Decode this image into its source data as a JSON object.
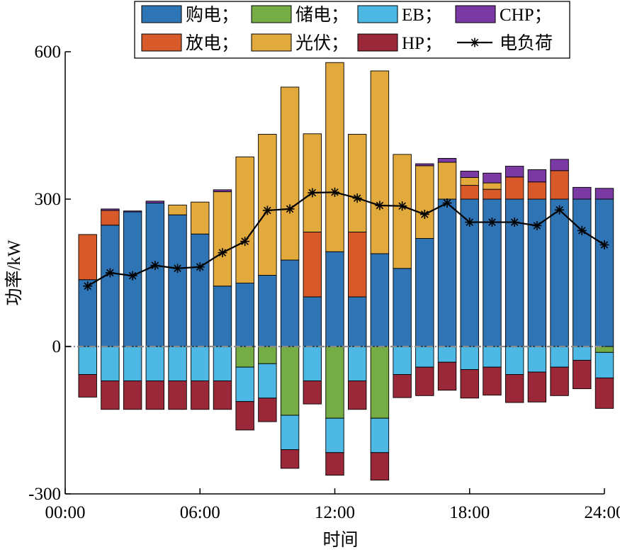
{
  "chart_data": {
    "type": "bar",
    "stacked": true,
    "xlabel": "时间",
    "ylabel": "功率/kW",
    "ylim": [
      -300,
      600
    ],
    "yticks": [
      "-300",
      "0",
      "300",
      "600"
    ],
    "xticks": [
      "00:00",
      "06:00",
      "12:00",
      "18:00",
      "24:00"
    ],
    "xlim": [
      0,
      24
    ],
    "grid": false,
    "legend_position": "top",
    "x": [
      1,
      2,
      3,
      4,
      5,
      6,
      7,
      8,
      9,
      10,
      11,
      12,
      13,
      14,
      15,
      16,
      17,
      18,
      19,
      20,
      21,
      22,
      23,
      24
    ],
    "series": [
      {
        "name": "购电",
        "color": "#2f74b5",
        "values": [
          136,
          247,
          274,
          292,
          268,
          229,
          123,
          129,
          145,
          176,
          101,
          193,
          101,
          189,
          159,
          220,
          300,
          300,
          300,
          300,
          300,
          300,
          300,
          300
        ]
      },
      {
        "name": "放电",
        "color": "#d85a2a",
        "values": [
          92,
          30,
          0,
          0,
          0,
          0,
          0,
          0,
          0,
          0,
          132,
          0,
          132,
          0,
          0,
          0,
          0,
          28,
          20,
          45,
          35,
          58,
          0,
          0
        ]
      },
      {
        "name": "光伏",
        "color": "#e2a93c",
        "values": [
          0,
          0,
          0,
          0,
          20,
          65,
          192,
          257,
          287,
          352,
          200,
          385,
          199,
          372,
          232,
          148,
          75,
          16,
          13,
          0,
          0,
          0,
          0,
          0
        ]
      },
      {
        "name": "CHP",
        "color": "#7b3aa3",
        "values": [
          0,
          3,
          2,
          4,
          0,
          0,
          4,
          0,
          0,
          0,
          0,
          0,
          0,
          0,
          0,
          4,
          8,
          13,
          20,
          22,
          25,
          23,
          24,
          22
        ]
      },
      {
        "name": "储电",
        "color": "#75ac45",
        "values": [
          0,
          0,
          0,
          0,
          0,
          0,
          0,
          -42,
          -35,
          -140,
          0,
          -146,
          0,
          -146,
          0,
          0,
          0,
          0,
          0,
          0,
          0,
          0,
          0,
          -12
        ]
      },
      {
        "name": "EB",
        "color": "#4db8e3",
        "values": [
          -57,
          -70,
          -70,
          -70,
          -70,
          -70,
          -70,
          -70,
          -70,
          -70,
          -70,
          -70,
          -70,
          -70,
          -57,
          -42,
          -32,
          -47,
          -42,
          -57,
          -52,
          -42,
          -28,
          -52
        ]
      },
      {
        "name": "HP",
        "color": "#9b2838",
        "values": [
          -46,
          -58,
          -58,
          -58,
          -58,
          -58,
          -58,
          -58,
          -48,
          -38,
          -47,
          -46,
          -58,
          -56,
          -47,
          -58,
          -57,
          -58,
          -57,
          -57,
          -61,
          -58,
          -58,
          -62
        ]
      }
    ],
    "load": {
      "name": "电负荷",
      "color": "#000000",
      "values": [
        123,
        150,
        144,
        165,
        159,
        162,
        191,
        214,
        277,
        280,
        313,
        314,
        302,
        287,
        286,
        269,
        292,
        253,
        253,
        253,
        246,
        278,
        236,
        207
      ]
    },
    "legend_order": [
      "购电",
      "储电",
      "EB",
      "CHP",
      "放电",
      "光伏",
      "HP",
      "电负荷"
    ],
    "legend_separator": "；"
  }
}
